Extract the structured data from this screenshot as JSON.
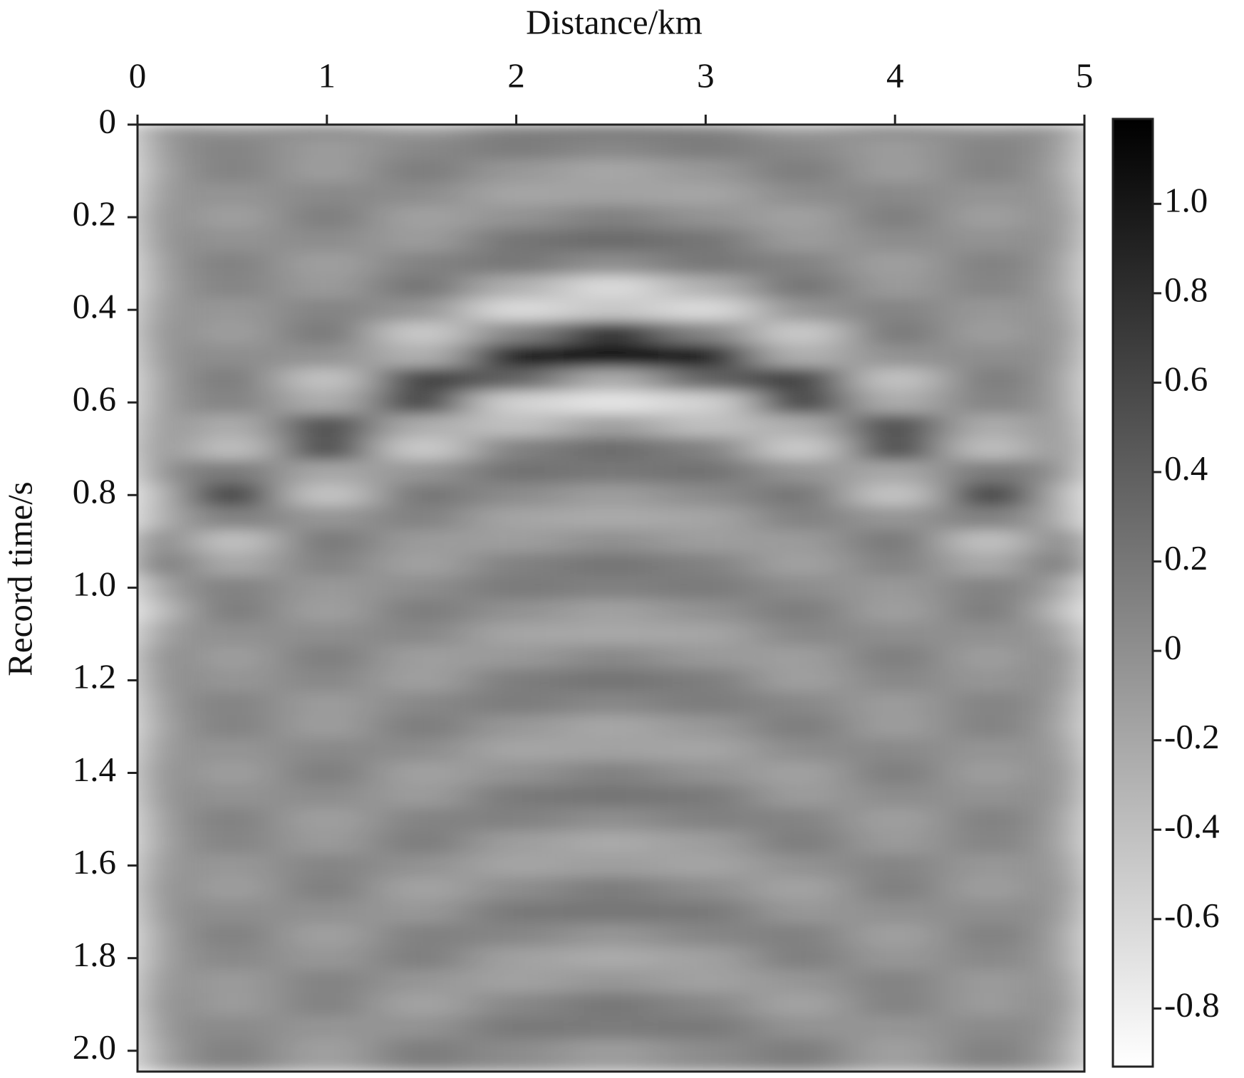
{
  "chart_data": {
    "type": "heatmap",
    "x_label": "Distance/km",
    "y_label": "Record time/s",
    "x": [
      0,
      0.5,
      1,
      1.5,
      2,
      2.5,
      3,
      3.5,
      4,
      4.5,
      5
    ],
    "y": [
      0,
      0.05,
      0.1,
      0.15,
      0.2,
      0.25,
      0.3,
      0.35,
      0.4,
      0.45,
      0.5,
      0.55,
      0.6,
      0.65,
      0.7,
      0.75,
      0.8,
      0.85,
      0.9,
      0.95,
      1,
      1.05,
      1.1,
      1.15,
      1.2,
      1.25,
      1.3,
      1.35,
      1.4,
      1.45,
      1.5,
      1.55,
      1.6,
      1.65,
      1.7,
      1.75,
      1.8,
      1.85,
      1.9,
      1.95,
      2
    ],
    "values": [
      [
        0.09,
        -0.06,
        -0.12,
        0,
        0.12,
        0.06,
        -0.09,
        -0.11,
        0.03,
        0.12,
        0.03,
        -0.11,
        -0.09,
        0.07,
        0.16,
        0,
        -0.34,
        -0.25,
        0.42,
        0.52,
        -0.13,
        -0.38,
        -0.07,
        0.16,
        0.1,
        -0.06,
        -0.12,
        0,
        0.12,
        0.06,
        -0.09,
        -0.11,
        0.03,
        0.12,
        0.03,
        -0.11,
        -0.09,
        0.06,
        0.12,
        0,
        -0.12
      ],
      [
        -0.06,
        0.1,
        0.11,
        -0.04,
        -0.14,
        -0.03,
        0.12,
        0.09,
        -0.07,
        -0.13,
        0.01,
        0.17,
        0.1,
        -0.25,
        -0.41,
        0.19,
        0.68,
        0.13,
        -0.42,
        -0.22,
        0.12,
        0.16,
        -0.01,
        -0.13,
        -0.06,
        0.1,
        0.11,
        -0.04,
        -0.13,
        -0.03,
        0.12,
        0.09,
        -0.07,
        -0.13,
        0.01,
        0.13,
        0.06,
        -0.1,
        -0.11,
        0.04,
        0.13
      ],
      [
        0.07,
        -0.11,
        -0.12,
        0.05,
        0.15,
        0.03,
        -0.14,
        -0.1,
        0.1,
        0.2,
        -0.02,
        -0.44,
        -0.26,
        0.56,
        0.61,
        -0.21,
        -0.46,
        -0.06,
        0.2,
        0.11,
        -0.09,
        -0.14,
        0.01,
        0.15,
        0.07,
        -0.11,
        -0.12,
        0.05,
        0.15,
        0.03,
        -0.14,
        -0.1,
        0.09,
        0.14,
        -0.01,
        -0.15,
        -0.07,
        0.11,
        0.12,
        -0.05,
        -0.15
      ],
      [
        -0.14,
        0.06,
        0.17,
        0.03,
        -0.16,
        -0.11,
        0.11,
        0.23,
        -0.04,
        -0.5,
        -0.28,
        0.65,
        0.67,
        -0.25,
        -0.51,
        -0.05,
        0.22,
        0.12,
        -0.1,
        -0.16,
        0.02,
        0.17,
        0.07,
        -0.13,
        -0.14,
        0.06,
        0.17,
        0.03,
        -0.16,
        -0.11,
        0.1,
        0.16,
        -0.02,
        -0.17,
        -0.07,
        0.13,
        0.14,
        -0.06,
        -0.17,
        -0.03,
        0.16
      ],
      [
        0.15,
        0.16,
        -0.07,
        -0.19,
        -0.03,
        0.22,
        0.2,
        -0.27,
        -0.63,
        0.09,
        0.97,
        0.37,
        -0.56,
        -0.41,
        0.12,
        0.25,
        0.03,
        -0.18,
        -0.12,
        0.12,
        0.18,
        -0.02,
        -0.19,
        -0.08,
        0.15,
        0.16,
        -0.07,
        -0.19,
        -0.03,
        0.18,
        0.12,
        -0.12,
        -0.18,
        0.02,
        0.19,
        0.08,
        -0.15,
        -0.16,
        0.07,
        0.19,
        0.03
      ],
      [
        0.23,
        0.06,
        -0.2,
        -0.16,
        0.13,
        0.31,
        0,
        -0.64,
        -0.46,
        0.79,
        0.98,
        -0.25,
        -0.71,
        -0.13,
        0.29,
        0.19,
        -0.12,
        -0.22,
        0,
        0.22,
        0.12,
        -0.16,
        -0.2,
        0.06,
        0.23,
        0.06,
        -0.2,
        -0.16,
        0.12,
        0.22,
        0,
        -0.22,
        -0.12,
        0.16,
        0.2,
        -0.06,
        -0.23,
        -0.06,
        0.2,
        0.16,
        -0.12
      ],
      [
        0.15,
        0.16,
        -0.07,
        -0.19,
        -0.03,
        0.22,
        0.2,
        -0.27,
        -0.63,
        0.09,
        0.97,
        0.37,
        -0.56,
        -0.41,
        0.12,
        0.25,
        0.03,
        -0.18,
        -0.12,
        0.12,
        0.18,
        -0.02,
        -0.19,
        -0.08,
        0.15,
        0.16,
        -0.07,
        -0.19,
        -0.03,
        0.18,
        0.12,
        -0.12,
        -0.18,
        0.02,
        0.19,
        0.08,
        -0.15,
        -0.16,
        0.07,
        0.19,
        0.03
      ],
      [
        -0.14,
        0.06,
        0.17,
        0.03,
        -0.16,
        -0.11,
        0.11,
        0.23,
        -0.04,
        -0.5,
        -0.28,
        0.65,
        0.67,
        -0.25,
        -0.51,
        -0.05,
        0.22,
        0.12,
        -0.1,
        -0.16,
        0.02,
        0.17,
        0.07,
        -0.13,
        -0.14,
        0.06,
        0.17,
        0.03,
        -0.16,
        -0.11,
        0.1,
        0.16,
        -0.02,
        -0.17,
        -0.07,
        0.13,
        0.14,
        -0.06,
        -0.17,
        -0.03,
        0.16
      ],
      [
        0.07,
        -0.11,
        -0.12,
        0.05,
        0.15,
        0.03,
        -0.14,
        -0.1,
        0.1,
        0.2,
        -0.02,
        -0.44,
        -0.26,
        0.56,
        0.61,
        -0.21,
        -0.46,
        -0.06,
        0.2,
        0.11,
        -0.09,
        -0.14,
        0.01,
        0.15,
        0.07,
        -0.11,
        -0.12,
        0.05,
        0.15,
        0.03,
        -0.14,
        -0.1,
        0.09,
        0.14,
        -0.01,
        -0.15,
        -0.07,
        0.11,
        0.12,
        -0.05,
        -0.15
      ],
      [
        -0.06,
        0.1,
        0.11,
        -0.04,
        -0.14,
        -0.03,
        0.12,
        0.09,
        -0.07,
        -0.13,
        0.01,
        0.17,
        0.1,
        -0.25,
        -0.41,
        0.19,
        0.68,
        0.13,
        -0.42,
        -0.22,
        0.12,
        0.16,
        -0.01,
        -0.13,
        -0.06,
        0.1,
        0.11,
        -0.04,
        -0.13,
        -0.03,
        0.12,
        0.09,
        -0.07,
        -0.13,
        0.01,
        0.13,
        0.06,
        -0.1,
        -0.11,
        0.04,
        0.13
      ],
      [
        0.09,
        -0.06,
        -0.12,
        0,
        0.12,
        0.06,
        -0.09,
        -0.11,
        0.03,
        0.12,
        0.03,
        -0.11,
        -0.09,
        0.07,
        0.16,
        0,
        -0.34,
        -0.25,
        0.42,
        0.52,
        -0.13,
        -0.38,
        -0.07,
        0.16,
        0.1,
        -0.06,
        -0.12,
        0,
        0.12,
        0.06,
        -0.09,
        -0.11,
        0.03,
        0.12,
        0.03,
        -0.11,
        -0.09,
        0.06,
        0.12,
        0,
        -0.12
      ]
    ],
    "xlim": [
      0,
      5
    ],
    "xticks": [
      0,
      1,
      2,
      3,
      4,
      5
    ],
    "ylim": [
      0,
      2.045
    ],
    "yticks": [
      0,
      0.2,
      0.4,
      0.6,
      0.8,
      {
        "value": 1,
        "label": "1.0"
      },
      1.2,
      1.4,
      1.6,
      1.8,
      {
        "value": 2,
        "label": "2.0"
      }
    ],
    "zlim": [
      -0.93,
      1.19
    ],
    "zticks": [
      {
        "value": 1,
        "label": "1.0"
      },
      0.8,
      0.6,
      0.4,
      0.2,
      0,
      -0.2,
      -0.4,
      -0.6,
      -0.8
    ],
    "colormap": [
      "#ffffff",
      "#000000"
    ]
  }
}
